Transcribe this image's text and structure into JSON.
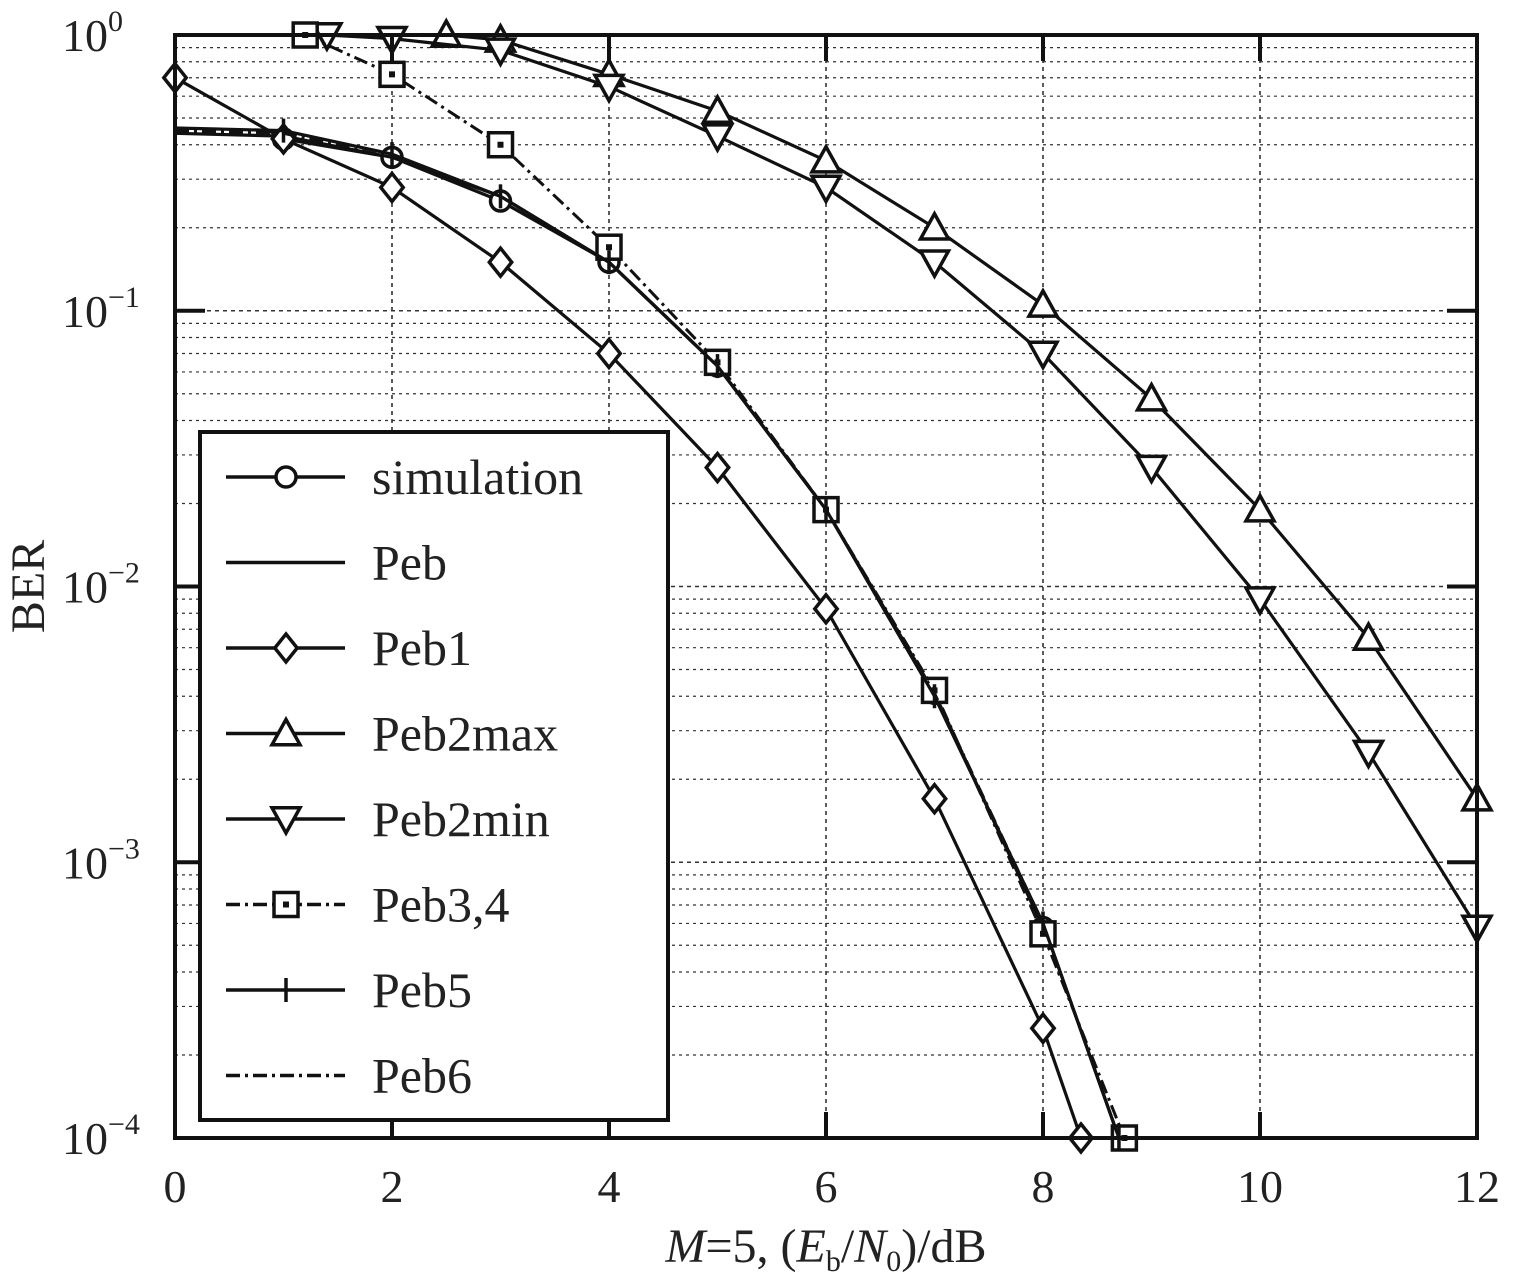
{
  "chart_data": {
    "type": "line",
    "xlabel": "M=5, (Eb/N0)/dB",
    "xlabel_parts": {
      "m": "M",
      "eq": "=5, (",
      "e": "E",
      "b": "b",
      "slash": "/",
      "n": "N",
      "zero": "0",
      "tail": ")/dB"
    },
    "ylabel": "BER",
    "y_scale": "log",
    "xlim": [
      0,
      12
    ],
    "ylim": [
      0.0001,
      1
    ],
    "x_ticks": [
      "0",
      "2",
      "4",
      "6",
      "8",
      "10",
      "12"
    ],
    "y_ticks": [
      {
        "base": "10",
        "exp": "−4"
      },
      {
        "base": "10",
        "exp": "−3"
      },
      {
        "base": "10",
        "exp": "−2"
      },
      {
        "base": "10",
        "exp": "−1"
      },
      {
        "base": "10",
        "exp": "0"
      }
    ],
    "grid": true,
    "legend_position": "bottom-left",
    "series": [
      {
        "name": "simulation",
        "marker": "circle",
        "dash": "solid",
        "x": [
          1,
          2,
          3,
          4,
          5,
          6,
          7,
          8
        ],
        "y": [
          0.42,
          0.36,
          0.25,
          0.15,
          0.063,
          0.019,
          0.0041,
          0.00058
        ]
      },
      {
        "name": "Peb",
        "marker": "none",
        "dash": "solid",
        "x": [
          0,
          1,
          2,
          3,
          4,
          5,
          6,
          7,
          8,
          8.7
        ],
        "y": [
          0.44,
          0.43,
          0.36,
          0.26,
          0.15,
          0.063,
          0.019,
          0.004,
          0.0006,
          0.0001
        ]
      },
      {
        "name": "Peb1",
        "marker": "diamond",
        "dash": "solid",
        "x": [
          0,
          1,
          2,
          3,
          4,
          5,
          6,
          7,
          8,
          8.35
        ],
        "y": [
          0.7,
          0.42,
          0.28,
          0.15,
          0.07,
          0.027,
          0.0083,
          0.0017,
          0.00025,
          0.0001
        ]
      },
      {
        "name": "Peb2max",
        "marker": "triangle-up",
        "dash": "solid",
        "x": [
          2.5,
          3,
          4,
          5,
          6,
          7,
          8,
          9,
          10,
          11,
          12
        ],
        "y": [
          1.0,
          0.96,
          0.72,
          0.53,
          0.35,
          0.2,
          0.105,
          0.048,
          0.019,
          0.0065,
          0.0017
        ]
      },
      {
        "name": "Peb2min",
        "marker": "triangle-down",
        "dash": "solid",
        "x": [
          1.4,
          2,
          3,
          4,
          5,
          6,
          7,
          8,
          9,
          10,
          11,
          12
        ],
        "y": [
          1.0,
          0.97,
          0.88,
          0.65,
          0.43,
          0.28,
          0.15,
          0.07,
          0.027,
          0.009,
          0.0025,
          0.00058
        ]
      },
      {
        "name": "Peb3,4",
        "marker": "square",
        "dash": "dashdot",
        "x": [
          1.2,
          2,
          3,
          4,
          5,
          6,
          7,
          8,
          8.75
        ],
        "y": [
          1.0,
          0.72,
          0.4,
          0.17,
          0.065,
          0.019,
          0.0042,
          0.00055,
          0.0001
        ]
      },
      {
        "name": "Peb5",
        "marker": "plus",
        "dash": "solid",
        "x": [
          0,
          1,
          2,
          3,
          4,
          5,
          6,
          7,
          8,
          8.7
        ],
        "y": [
          0.46,
          0.45,
          0.37,
          0.26,
          0.15,
          0.063,
          0.019,
          0.004,
          0.0006,
          0.0001
        ]
      },
      {
        "name": "Peb6",
        "marker": "none",
        "dash": "dashdot",
        "x": [
          0,
          1,
          2,
          3,
          4,
          5,
          6,
          7,
          8,
          8.7
        ],
        "y": [
          0.45,
          0.44,
          0.36,
          0.26,
          0.15,
          0.063,
          0.019,
          0.0041,
          0.0006,
          0.0001
        ]
      }
    ]
  }
}
